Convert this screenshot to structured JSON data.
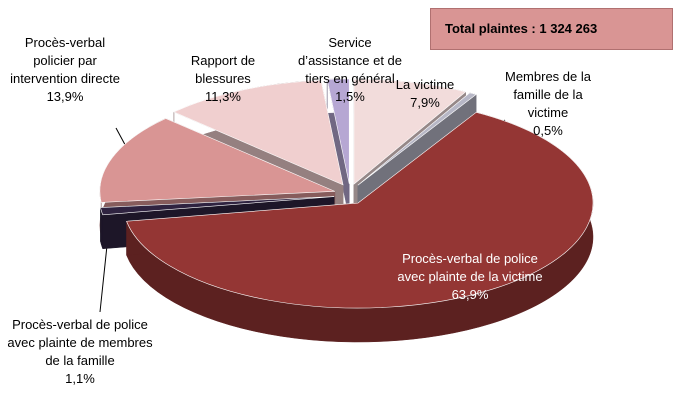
{
  "chart_data": {
    "type": "pie",
    "annotation": "Total plaintes : 1 324 263",
    "categories": [
      "La victime",
      "Membres de la famille de la victime",
      "Procès-verbal de police avec plainte de la victime",
      "Procès-verbal de police avec plainte de membres de la famille",
      "Procès-verbal policier par intervention directe",
      "Rapport de blessures",
      "Service d’assistance et de tiers en général"
    ],
    "values": [
      7.9,
      0.5,
      63.9,
      1.1,
      13.9,
      11.3,
      1.5
    ],
    "value_labels": [
      "7,9%",
      "0,5%",
      "63,9%",
      "1,1%",
      "13,9%",
      "11,3%",
      "1,5%"
    ],
    "colors": [
      "#f2dcdb",
      "#b7b7c6",
      "#943634",
      "#2f2340",
      "#d99594",
      "#f0cfcf",
      "#b6a7d3"
    ]
  }
}
